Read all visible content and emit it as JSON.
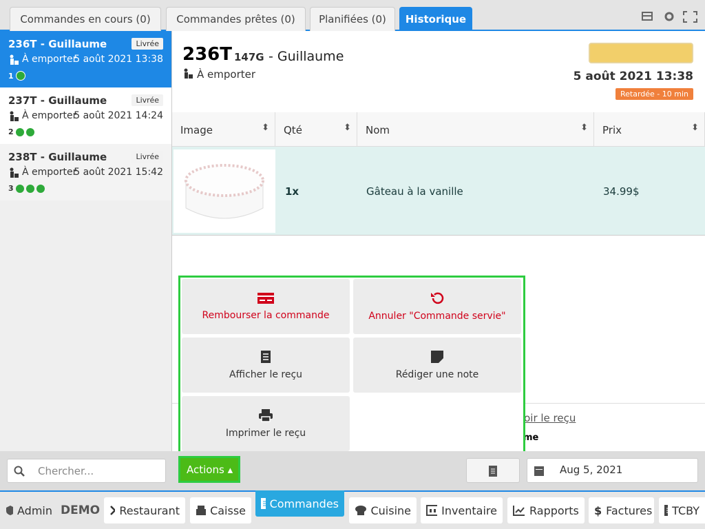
{
  "tabs": [
    "Commandes en cours (0)",
    "Commandes prêtes (0)",
    "Planifiées (0)",
    "Historique"
  ],
  "orders": [
    {
      "title": "236T - Guillaume",
      "status": "Livrée",
      "mode": "À emporter",
      "date": "5 août 2021 13:38",
      "count": 1
    },
    {
      "title": "237T - Guillaume",
      "status": "Livrée",
      "mode": "À emporter",
      "date": "5 août 2021 14:24",
      "count": 2
    },
    {
      "title": "238T - Guillaume",
      "status": "Livrée",
      "mode": "À emporter",
      "date": "5 août 2021 15:42",
      "count": 3
    }
  ],
  "detail": {
    "number": "236T",
    "code": "147G",
    "name": "- Guillaume",
    "mode": "À emporter",
    "date": "5 août 2021 13:38",
    "badge": "Retardée - 10 min"
  },
  "table": {
    "headers": [
      "Image",
      "Qté",
      "Nom",
      "Prix"
    ],
    "rows": [
      [
        "1x",
        "Gâteau à la vanille",
        "34.99$"
      ]
    ]
  },
  "actions": [
    "Rembourser la commande",
    "Annuler \"Commande servie\"",
    "Afficher le reçu",
    "Rédiger une note",
    "Imprimer le reçu"
  ],
  "behind": {
    "link": "Voir le reçu",
    "text": "me"
  },
  "toolbar": {
    "search": "Chercher...",
    "actions": "Actions",
    "date": "Aug 5, 2021"
  },
  "nav": [
    "Admin",
    "DEMO",
    "Restaurant",
    "Caisse",
    "Commandes",
    "Cuisine",
    "Inventaire",
    "Rapports",
    "Factures",
    "TCBY"
  ]
}
